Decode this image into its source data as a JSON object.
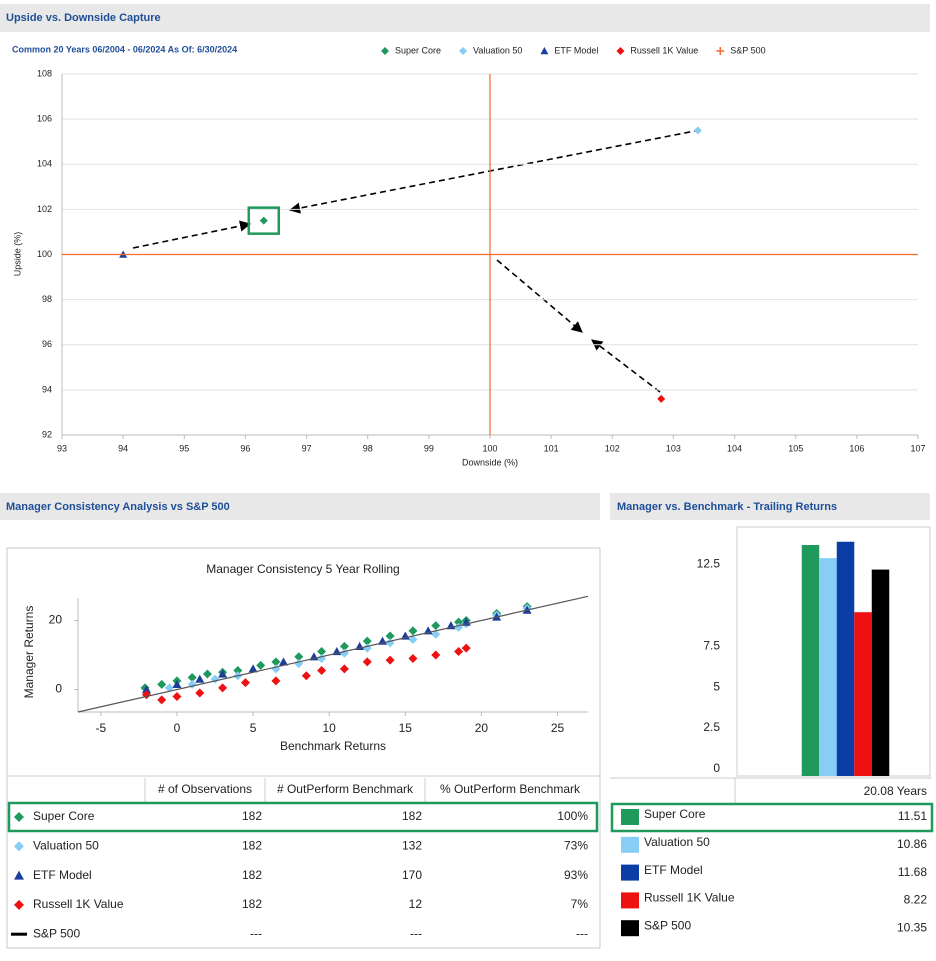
{
  "chart_data": [
    {
      "type": "scatter",
      "title": "Upside vs. Downside Capture",
      "subtitle": "Common 20 Years 06/2004 - 06/2024 As Of: 6/30/2024",
      "x_label": "Downside (%)",
      "y_label": "Upside (%)",
      "xlim": [
        93,
        107
      ],
      "xticks": [
        93,
        94,
        95,
        96,
        97,
        98,
        99,
        100,
        101,
        102,
        103,
        104,
        105,
        106,
        107
      ],
      "ylim": [
        92,
        108
      ],
      "yticks": [
        92,
        94,
        96,
        98,
        100,
        102,
        104,
        106,
        108
      ],
      "grid": true,
      "series": [
        {
          "name": "Super Core",
          "color": "#1f9a5c",
          "marker": "diamond",
          "x": [
            96.3
          ],
          "values": [
            101.5
          ]
        },
        {
          "name": "Valuation 50",
          "color": "#87cdf5",
          "marker": "diamond",
          "x": [
            103.4
          ],
          "values": [
            105.5
          ]
        },
        {
          "name": "ETF Model",
          "color": "#1c3f9c",
          "marker": "triangle",
          "x": [
            94
          ],
          "values": [
            100
          ]
        },
        {
          "name": "Russell 1K Value",
          "color": "#ee1111",
          "marker": "diamond",
          "x": [
            102.8
          ],
          "values": [
            93.6
          ]
        },
        {
          "name": "S&P 500",
          "color": "#f26b2f",
          "marker": "plus",
          "x": [
            100
          ],
          "values": [
            100
          ]
        }
      ]
    },
    {
      "type": "scatter",
      "title": "Manager Consistency 5 Year Rolling",
      "section_title": "Manager Consistency Analysis vs S&P 500",
      "x_label": "Benchmark Returns",
      "y_label": "Manager Returns",
      "xlim": [
        -6.5,
        27
      ],
      "xticks": [
        -5,
        0,
        5,
        10,
        15,
        20,
        25
      ],
      "ylim": [
        -6.5,
        26.5
      ],
      "yticks": [
        0,
        20
      ],
      "series": [
        {
          "name": "Super Core",
          "color": "#1f9a5c",
          "marker": "diamond",
          "x": [
            -2.1,
            -1,
            0,
            1,
            2,
            3,
            4,
            5.5,
            6.5,
            8,
            9.5,
            11,
            12.5,
            14,
            15.5,
            17,
            18.5,
            19,
            21,
            23
          ],
          "values": [
            0.5,
            1.5,
            2.5,
            3.5,
            4.5,
            5,
            5.5,
            7,
            8,
            9.5,
            11,
            12.5,
            14,
            15.5,
            17,
            18.5,
            19.5,
            20,
            22,
            24
          ]
        },
        {
          "name": "Valuation 50",
          "color": "#87cdf5",
          "marker": "diamond",
          "x": [
            -2,
            -0.5,
            1,
            2.5,
            4,
            6.5,
            8,
            9.5,
            11,
            12.5,
            14,
            15.5,
            17,
            18.5,
            19,
            21,
            23
          ],
          "values": [
            -1,
            0.5,
            1.5,
            3,
            4,
            6,
            7.5,
            9,
            10.5,
            12,
            13.5,
            14.5,
            16,
            18,
            19,
            21.5,
            23.5
          ]
        },
        {
          "name": "ETF Model",
          "color": "#1c3f9c",
          "marker": "triangle",
          "x": [
            -2,
            0,
            1.5,
            3,
            5,
            7,
            9,
            10.5,
            12,
            13.5,
            15,
            16.5,
            18,
            19,
            21,
            23
          ],
          "values": [
            0,
            1.5,
            3,
            4.5,
            6,
            8,
            9.5,
            11,
            12.5,
            14,
            15.5,
            17,
            18.5,
            19.5,
            21,
            23
          ]
        },
        {
          "name": "Russell 1K Value",
          "color": "#ee1111",
          "marker": "diamond",
          "x": [
            -2,
            -1,
            0,
            1.5,
            3,
            4.5,
            6.5,
            8.5,
            9.5,
            11,
            12.5,
            14,
            15.5,
            17,
            18.5,
            19
          ],
          "values": [
            -1.5,
            -3,
            -2,
            -1,
            0.5,
            2,
            2.5,
            4,
            5.5,
            6,
            8,
            8.5,
            9,
            10,
            11,
            12
          ]
        },
        {
          "name": "S&P 500",
          "color": "#000000",
          "marker": "line",
          "x": [
            -6.5,
            27
          ],
          "values": [
            -6.5,
            27
          ]
        }
      ]
    },
    {
      "type": "bar",
      "title": "Manager vs. Benchmark - Trailing Returns",
      "categories": [
        "20.08 Years"
      ],
      "ylim": [
        0,
        15.2
      ],
      "yticks": [
        0,
        2.5,
        5,
        7.5,
        12.5
      ],
      "series": [
        {
          "name": "Super Core",
          "color": "#1f9a5c",
          "values": [
            14.1
          ]
        },
        {
          "name": "Valuation 50",
          "color": "#87cdf5",
          "values": [
            13.3
          ]
        },
        {
          "name": "ETF Model",
          "color": "#0a3ea6",
          "values": [
            14.3
          ]
        },
        {
          "name": "Russell 1K Value",
          "color": "#ee1111",
          "values": [
            10.0
          ]
        },
        {
          "name": "S&P 500",
          "color": "#000000",
          "values": [
            12.6
          ]
        }
      ]
    }
  ],
  "consistency_table": {
    "columns": [
      "# of Observations",
      "# OutPerform Benchmark",
      "% OutPerform Benchmark"
    ],
    "rows": [
      [
        "182",
        "182",
        "100%"
      ],
      [
        "182",
        "132",
        "73%"
      ],
      [
        "182",
        "170",
        "93%"
      ],
      [
        "182",
        "12",
        "7%"
      ],
      [
        "---",
        "---",
        "---"
      ]
    ]
  },
  "trailing_table": {
    "values": [
      11.51,
      10.86,
      11.68,
      8.22,
      10.35
    ]
  }
}
